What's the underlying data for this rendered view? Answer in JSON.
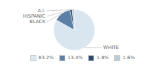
{
  "chart_data": {
    "type": "pie",
    "categories": [
      "WHITE",
      "BLACK",
      "HISPANIC",
      "A.I."
    ],
    "values": [
      83.2,
      13.4,
      1.8,
      1.6
    ],
    "value_labels": [
      "83.2%",
      "13.4%",
      "1.8%",
      "1.6%"
    ],
    "colors": [
      "#d9e6f0",
      "#5b7fa6",
      "#2c4a6e",
      "#b8cdd8"
    ],
    "legend": "bottom"
  }
}
